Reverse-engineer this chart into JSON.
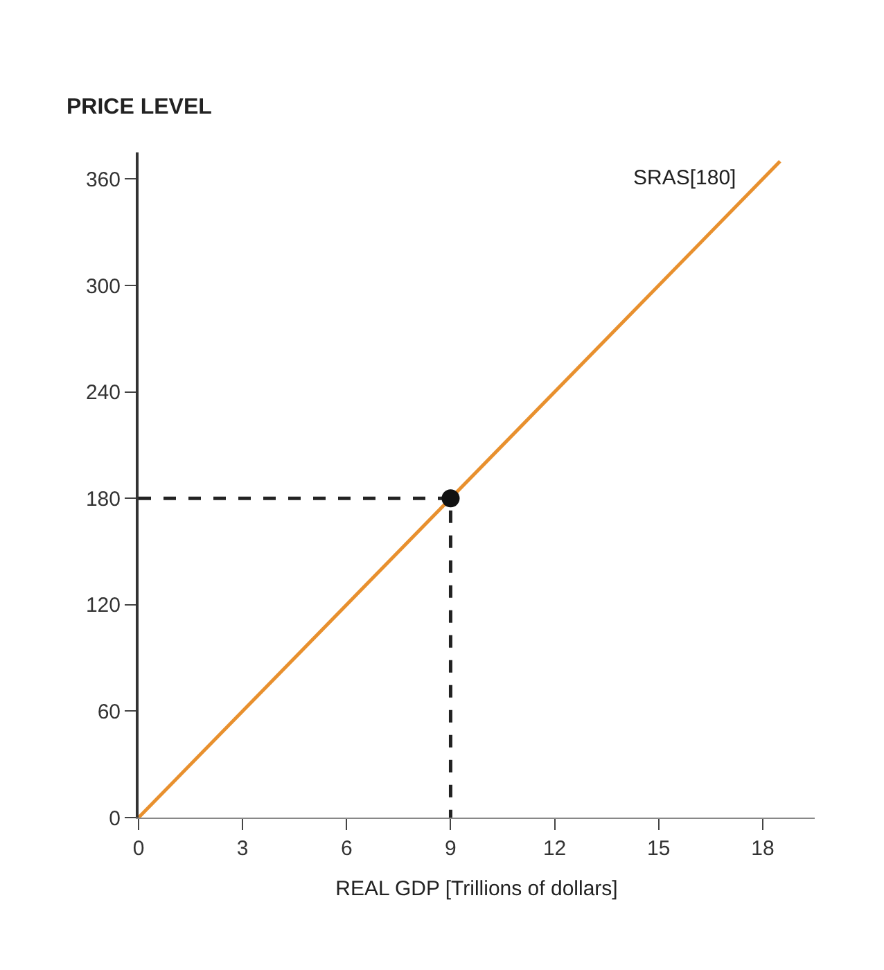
{
  "chart_data": {
    "type": "line",
    "xlabel": "REAL GDP [Trillions of dollars]",
    "ylabel": "PRICE LEVEL",
    "xlim": [
      0,
      19.5
    ],
    "ylim": [
      0,
      375
    ],
    "xticks": [
      0,
      3,
      6,
      9,
      12,
      15,
      18
    ],
    "yticks": [
      0,
      60,
      120,
      180,
      240,
      300,
      360
    ],
    "legend": false,
    "series": [
      {
        "name": "SRAS[180]",
        "color": "#e8902e",
        "x": [
          0,
          18.5
        ],
        "values": [
          0,
          370
        ],
        "marker": "none",
        "line_style": "solid"
      },
      {
        "color": "#222222",
        "x": [
          0,
          9,
          9
        ],
        "values": [
          180,
          180,
          0
        ],
        "marker": "none",
        "line_style": "dashed"
      },
      {
        "type": "scatter",
        "color": "#111111",
        "x": [
          9
        ],
        "values": [
          180
        ],
        "marker": "circle"
      }
    ]
  }
}
